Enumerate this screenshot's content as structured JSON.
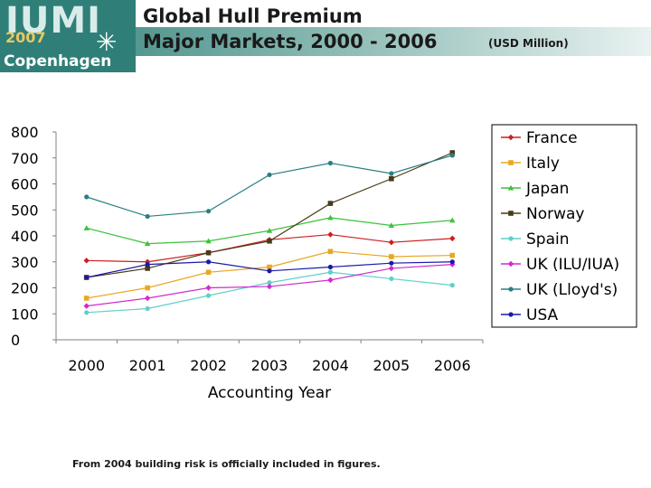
{
  "logo": {
    "main": "IUMI",
    "year": "2007",
    "city": "Copenhagen"
  },
  "header": {
    "title_line1": "Global Hull Premium",
    "title_line2": "Major Markets, 2000 - 2006",
    "units": "(USD Million)"
  },
  "footnote": "From 2004 building risk is officially included in figures.",
  "chart_data": {
    "type": "line",
    "title": "Global Hull Premium Major Markets, 2000 - 2006",
    "xlabel": "Accounting Year",
    "ylabel": "",
    "x": [
      "2000",
      "2001",
      "2002",
      "2003",
      "2004",
      "2005",
      "2006"
    ],
    "ylim": [
      0,
      800
    ],
    "yticks": [
      0,
      100,
      200,
      300,
      400,
      500,
      600,
      700,
      800
    ],
    "grid": false,
    "legend": "right",
    "series": [
      {
        "name": "France",
        "color": "#cc1f1f",
        "marker": "diamond",
        "values": [
          305,
          300,
          335,
          385,
          405,
          375,
          390
        ]
      },
      {
        "name": "Italy",
        "color": "#e8a823",
        "marker": "square",
        "values": [
          160,
          200,
          260,
          280,
          340,
          320,
          325
        ]
      },
      {
        "name": "Japan",
        "color": "#3cc13c",
        "marker": "triangle",
        "values": [
          430,
          370,
          380,
          420,
          470,
          440,
          460
        ]
      },
      {
        "name": "Norway",
        "color": "#4a3a16",
        "marker": "square",
        "values": [
          240,
          275,
          335,
          380,
          525,
          620,
          720
        ]
      },
      {
        "name": "Spain",
        "color": "#5fd0c8",
        "marker": "circle",
        "values": [
          105,
          120,
          170,
          220,
          260,
          235,
          210
        ]
      },
      {
        "name": "UK (ILU/IUA)",
        "color": "#d02bd0",
        "marker": "diamond",
        "values": [
          130,
          160,
          200,
          205,
          230,
          275,
          290
        ]
      },
      {
        "name": "UK (Lloyd's)",
        "color": "#2a7f82",
        "marker": "circle",
        "values": [
          550,
          475,
          495,
          635,
          680,
          640,
          710
        ]
      },
      {
        "name": "USA",
        "color": "#1a1aa8",
        "marker": "circle",
        "values": [
          240,
          290,
          300,
          265,
          280,
          295,
          300
        ]
      }
    ]
  }
}
